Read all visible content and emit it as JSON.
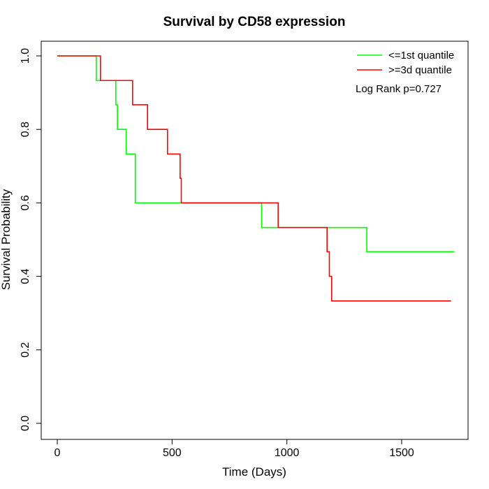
{
  "chart_data": {
    "type": "line",
    "title": "Survival by CD58 expression",
    "xlabel": "Time (Days)",
    "ylabel": "Survival Probability",
    "xlim": [
      0,
      1760
    ],
    "ylim": [
      0,
      1.0
    ],
    "x_ticks": [
      0,
      500,
      1000,
      1500
    ],
    "x_tick_labels": [
      "0",
      "500",
      "1000",
      "1500"
    ],
    "y_ticks": [
      0.0,
      0.2,
      0.4,
      0.6,
      0.8,
      1.0
    ],
    "y_tick_labels": [
      "0.0",
      "0.2",
      "0.4",
      "0.6",
      "0.8",
      "1.0"
    ],
    "grid": false,
    "legend_position": "top-right",
    "annotation": "Log Rank p=0.727",
    "series": [
      {
        "name": "<=1st quantile",
        "color": "#00ff00",
        "step": true,
        "x": [
          0,
          170,
          255,
          262,
          300,
          340,
          890,
          1348,
          1730
        ],
        "y": [
          1.0,
          0.933,
          0.867,
          0.8,
          0.733,
          0.6,
          0.533,
          0.467,
          0.467
        ]
      },
      {
        "name": ">=3d quantile",
        "color": "#ff0000",
        "step": true,
        "x": [
          0,
          188,
          328,
          393,
          480,
          535,
          540,
          962,
          1175,
          1185,
          1195,
          1715
        ],
        "y": [
          1.0,
          0.933,
          0.867,
          0.8,
          0.733,
          0.667,
          0.6,
          0.533,
          0.467,
          0.4,
          0.333,
          0.333
        ]
      }
    ]
  }
}
